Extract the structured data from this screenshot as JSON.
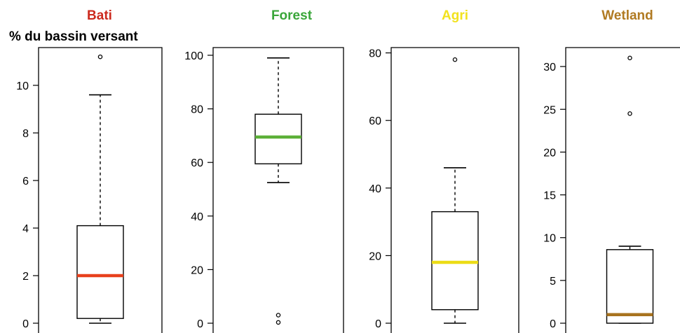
{
  "figure": {
    "ylabel": "% du bassin versant"
  },
  "chart_data": [
    {
      "type": "box",
      "title": "Bati",
      "title_color": "#cc2a1e",
      "median_color": "#e8401c",
      "ylim": [
        0,
        11.3
      ],
      "ticks": [
        0,
        2,
        4,
        6,
        8,
        10
      ],
      "box": {
        "whisker_low": 0.0,
        "q1": 0.2,
        "median": 2.0,
        "q3": 4.1,
        "whisker_high": 9.6
      },
      "outliers": [
        11.2
      ]
    },
    {
      "type": "box",
      "title": "Forest",
      "title_color": "#3aa63a",
      "median_color": "#5cb038",
      "ylim": [
        0,
        100
      ],
      "ticks": [
        0,
        20,
        40,
        60,
        80,
        100
      ],
      "box": {
        "whisker_low": 52.5,
        "q1": 59.5,
        "median": 69.5,
        "q3": 78.0,
        "whisker_high": 99.0
      },
      "outliers": [
        0.3,
        3.0
      ]
    },
    {
      "type": "box",
      "title": "Agri",
      "title_color": "#f2e21d",
      "median_color": "#ecdc16",
      "ylim": [
        0,
        80
      ],
      "ticks": [
        0,
        20,
        40,
        60,
        80
      ],
      "box": {
        "whisker_low": 0.0,
        "q1": 4.0,
        "median": 18.0,
        "q3": 33.0,
        "whisker_high": 46.0
      },
      "outliers": [
        78.0
      ]
    },
    {
      "type": "box",
      "title": "Wetland",
      "title_color": "#b07a22",
      "median_color": "#a8731f",
      "ylim": [
        0,
        31
      ],
      "ticks": [
        0,
        5,
        10,
        15,
        20,
        25,
        30
      ],
      "box": {
        "whisker_low": 0.0,
        "q1": 0.0,
        "median": 1.0,
        "q3": 8.6,
        "whisker_high": 9.0
      },
      "outliers": [
        24.5,
        31.0
      ]
    }
  ]
}
